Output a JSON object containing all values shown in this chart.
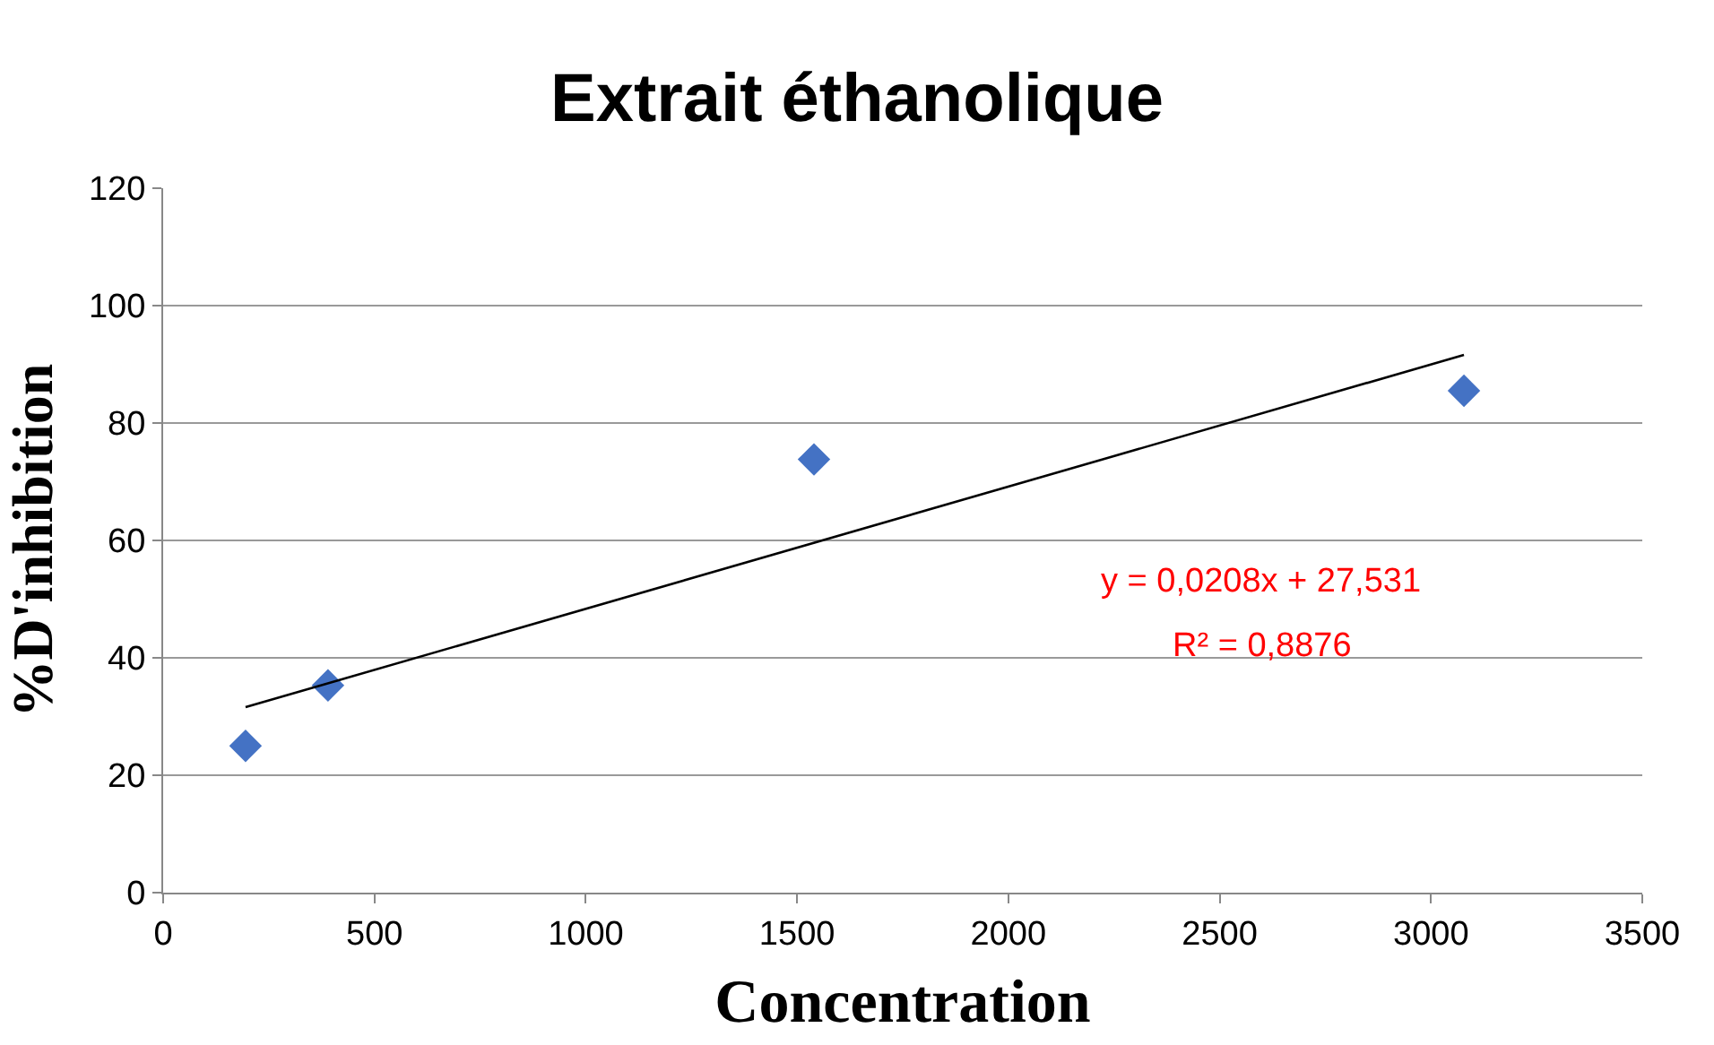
{
  "chart_data": {
    "type": "scatter",
    "title": "Extrait éthanolique",
    "xlabel": "Concentration",
    "ylabel": "%D'inhibition",
    "series": [
      {
        "color": "#4472c4",
        "marker": "diamond",
        "x": [
          195,
          390,
          1540,
          3078
        ],
        "values": [
          25,
          35.3,
          73.8,
          85.5
        ]
      },
      {
        "type": "line",
        "color": "#000000",
        "marker": "none",
        "x": [
          195,
          3078
        ],
        "values": [
          31.6,
          91.6
        ]
      }
    ],
    "annotations": [
      "y = 0,0208x + 27,531",
      "R² = 0,8876"
    ],
    "xlim": [
      0,
      3500
    ],
    "xticks": [
      0,
      500,
      1000,
      1500,
      2000,
      2500,
      3000,
      3500
    ],
    "ylim": [
      0,
      120
    ],
    "yticks": [
      0,
      20,
      40,
      60,
      80,
      100,
      120
    ],
    "grid": "y"
  }
}
